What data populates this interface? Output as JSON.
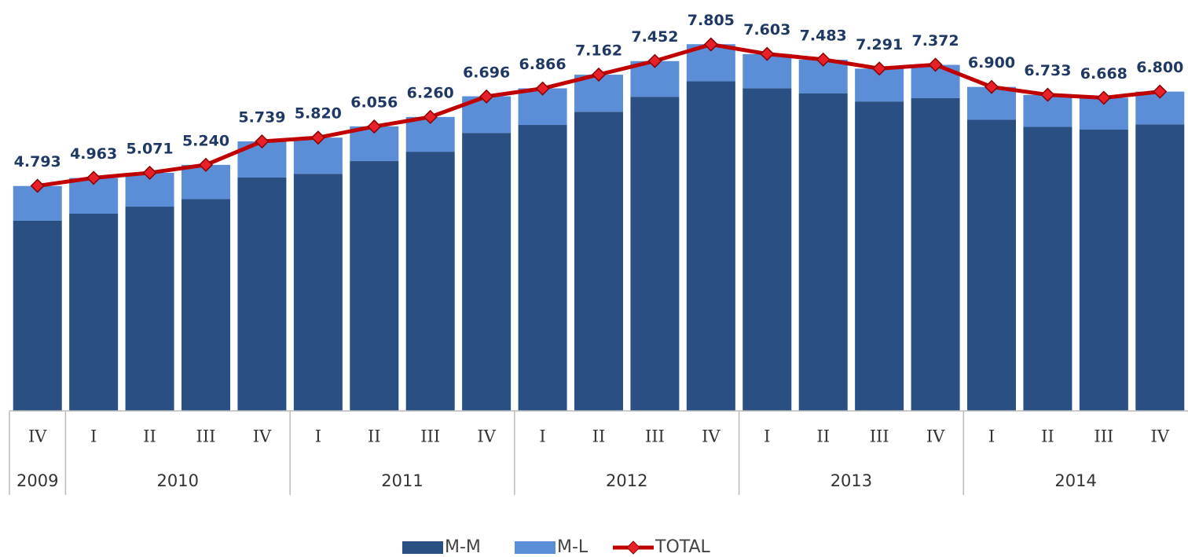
{
  "chart_data": {
    "type": "stacked-bar-line",
    "categories": [
      "IV",
      "I",
      "II",
      "III",
      "IV",
      "I",
      "II",
      "III",
      "IV",
      "I",
      "II",
      "III",
      "IV",
      "I",
      "II",
      "III",
      "IV",
      "I",
      "II",
      "III",
      "IV"
    ],
    "groups": [
      {
        "label": "2009",
        "count": 1
      },
      {
        "label": "2010",
        "count": 4
      },
      {
        "label": "2011",
        "count": 4
      },
      {
        "label": "2012",
        "count": 4
      },
      {
        "label": "2013",
        "count": 4
      },
      {
        "label": "2014",
        "count": 4
      }
    ],
    "series": [
      {
        "name": "M-M",
        "color": "#2a5083",
        "kind": "bar",
        "values": [
          4.05,
          4.2,
          4.35,
          4.51,
          4.97,
          5.05,
          5.32,
          5.52,
          5.92,
          6.09,
          6.37,
          6.69,
          7.02,
          6.87,
          6.76,
          6.59,
          6.66,
          6.2,
          6.05,
          5.99,
          6.1
        ]
      },
      {
        "name": "M-L",
        "color": "#5b8ed6",
        "kind": "bar",
        "values": [
          0.74,
          0.76,
          0.72,
          0.73,
          0.77,
          0.77,
          0.74,
          0.74,
          0.78,
          0.78,
          0.79,
          0.76,
          0.79,
          0.73,
          0.72,
          0.7,
          0.71,
          0.7,
          0.68,
          0.68,
          0.7
        ]
      },
      {
        "name": "TOTAL",
        "color": "#c00000",
        "kind": "line",
        "values": [
          4.793,
          4.963,
          5.071,
          5.24,
          5.739,
          5.82,
          6.056,
          6.26,
          6.696,
          6.866,
          7.162,
          7.452,
          7.805,
          7.603,
          7.483,
          7.291,
          7.372,
          6.9,
          6.733,
          6.668,
          6.8
        ],
        "value_labels": [
          "4.793",
          "4.963",
          "5.071",
          "5.240",
          "5.739",
          "5.820",
          "6.056",
          "6.260",
          "6.696",
          "6.866",
          "7.162",
          "7.452",
          "7.805",
          "7.603",
          "7.483",
          "7.291",
          "7.372",
          "6.900",
          "6.733",
          "6.668",
          "6.800"
        ]
      }
    ],
    "ylim": [
      0,
      8.5
    ]
  }
}
